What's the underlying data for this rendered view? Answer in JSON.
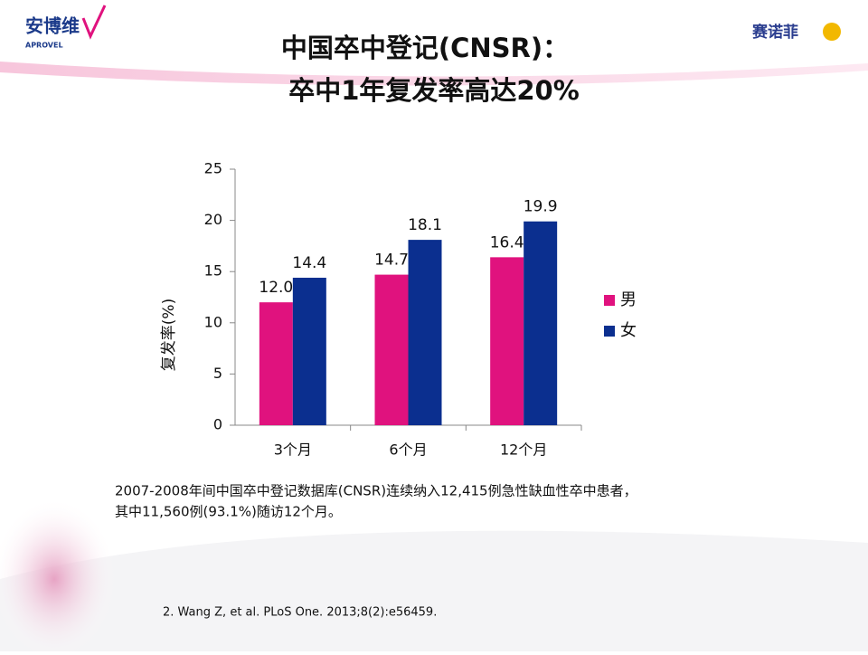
{
  "logo_left": {
    "name": "安博维",
    "sub": "APROVEL"
  },
  "logo_right": "赛诺菲",
  "title_lines": [
    "中国卒中登记(CNSR)：",
    "卒中1年复发率高达20%"
  ],
  "chart_data": {
    "type": "bar",
    "y_label": "复发率(%)",
    "categories": [
      "3个月",
      "6个月",
      "12个月"
    ],
    "series": [
      {
        "name": "男",
        "color": "#e0127e",
        "values": [
          12.0,
          14.7,
          16.4
        ],
        "value_labels": [
          "12.0",
          "14.7",
          "16.4"
        ]
      },
      {
        "name": "女",
        "color": "#0b2f8f",
        "values": [
          14.4,
          18.1,
          19.9
        ],
        "value_labels": [
          "14.4",
          "18.1",
          "19.9"
        ]
      }
    ],
    "ylim": [
      0,
      25
    ],
    "yticks": [
      0,
      5,
      10,
      15,
      20,
      25
    ],
    "legend": "right"
  },
  "note_lines": [
    "2007-2008年间中国卒中登记数据库(CNSR)连续纳入12,415例急性缺血性卒中患者，",
    "其中11,560例(93.1%)随访12个月。"
  ],
  "reference": "2. Wang Z, et al. PLoS One. 2013;8(2):e56459."
}
